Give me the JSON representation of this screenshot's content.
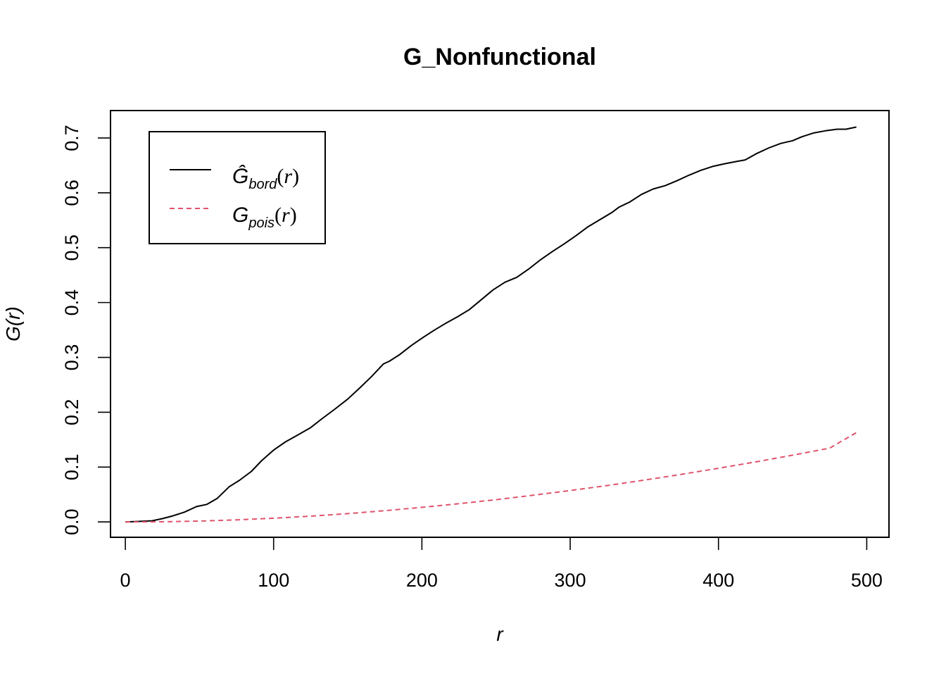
{
  "chart_data": {
    "type": "line",
    "title": "G_Nonfunctional",
    "xlabel": "r",
    "ylabel": "G(r)",
    "xlim": [
      -10,
      515
    ],
    "ylim": [
      -0.028,
      0.75
    ],
    "xticks": [
      0,
      100,
      200,
      300,
      400,
      500
    ],
    "xtick_labels": [
      "0",
      "100",
      "200",
      "300",
      "400",
      "500"
    ],
    "yticks": [
      0.0,
      0.1,
      0.2,
      0.3,
      0.4,
      0.5,
      0.6,
      0.7
    ],
    "ytick_labels": [
      "0.0",
      "0.1",
      "0.2",
      "0.3",
      "0.4",
      "0.5",
      "0.6",
      "0.7"
    ],
    "grid": false,
    "legend_position": "top-left",
    "series": [
      {
        "name": "Ĝbord(r)",
        "legend_main": "Ĝ",
        "legend_sub": "bord",
        "legend_arg": "r",
        "color": "#000000",
        "dash": "solid",
        "x": [
          0,
          10,
          18,
          25,
          32,
          40,
          48,
          55,
          62,
          70,
          77,
          85,
          92,
          100,
          108,
          116,
          125,
          133,
          141,
          150,
          158,
          166,
          174,
          178,
          185,
          193,
          200,
          208,
          216,
          224,
          232,
          240,
          248,
          256,
          264,
          272,
          280,
          288,
          296,
          304,
          312,
          320,
          328,
          333,
          340,
          348,
          356,
          364,
          372,
          380,
          388,
          396,
          404,
          412,
          418,
          426,
          434,
          442,
          450,
          456,
          464,
          472,
          480,
          486,
          493
        ],
        "y": [
          0.0,
          0.001,
          0.002,
          0.006,
          0.011,
          0.018,
          0.028,
          0.032,
          0.043,
          0.064,
          0.076,
          0.092,
          0.112,
          0.131,
          0.146,
          0.158,
          0.172,
          0.189,
          0.205,
          0.224,
          0.244,
          0.265,
          0.288,
          0.293,
          0.305,
          0.322,
          0.335,
          0.349,
          0.362,
          0.374,
          0.387,
          0.405,
          0.423,
          0.437,
          0.446,
          0.461,
          0.478,
          0.493,
          0.507,
          0.522,
          0.538,
          0.551,
          0.564,
          0.574,
          0.583,
          0.597,
          0.607,
          0.613,
          0.622,
          0.632,
          0.641,
          0.648,
          0.653,
          0.657,
          0.66,
          0.672,
          0.682,
          0.69,
          0.695,
          0.702,
          0.709,
          0.713,
          0.716,
          0.716,
          0.72
        ]
      },
      {
        "name": "Gpois(r)",
        "legend_main": "G",
        "legend_sub": "pois",
        "legend_arg": "r",
        "color": "#DF536B",
        "dash": "dashed",
        "x": [
          0,
          25,
          50,
          75,
          100,
          125,
          150,
          175,
          200,
          225,
          250,
          275,
          300,
          325,
          350,
          375,
          400,
          425,
          450,
          475,
          493
        ],
        "y": [
          0.0,
          0.0002,
          0.0015,
          0.0037,
          0.0068,
          0.0105,
          0.0152,
          0.0205,
          0.0265,
          0.0332,
          0.0405,
          0.0487,
          0.0573,
          0.0664,
          0.0763,
          0.0868,
          0.0978,
          0.1094,
          0.1217,
          0.1345,
          0.1628
        ]
      }
    ]
  }
}
